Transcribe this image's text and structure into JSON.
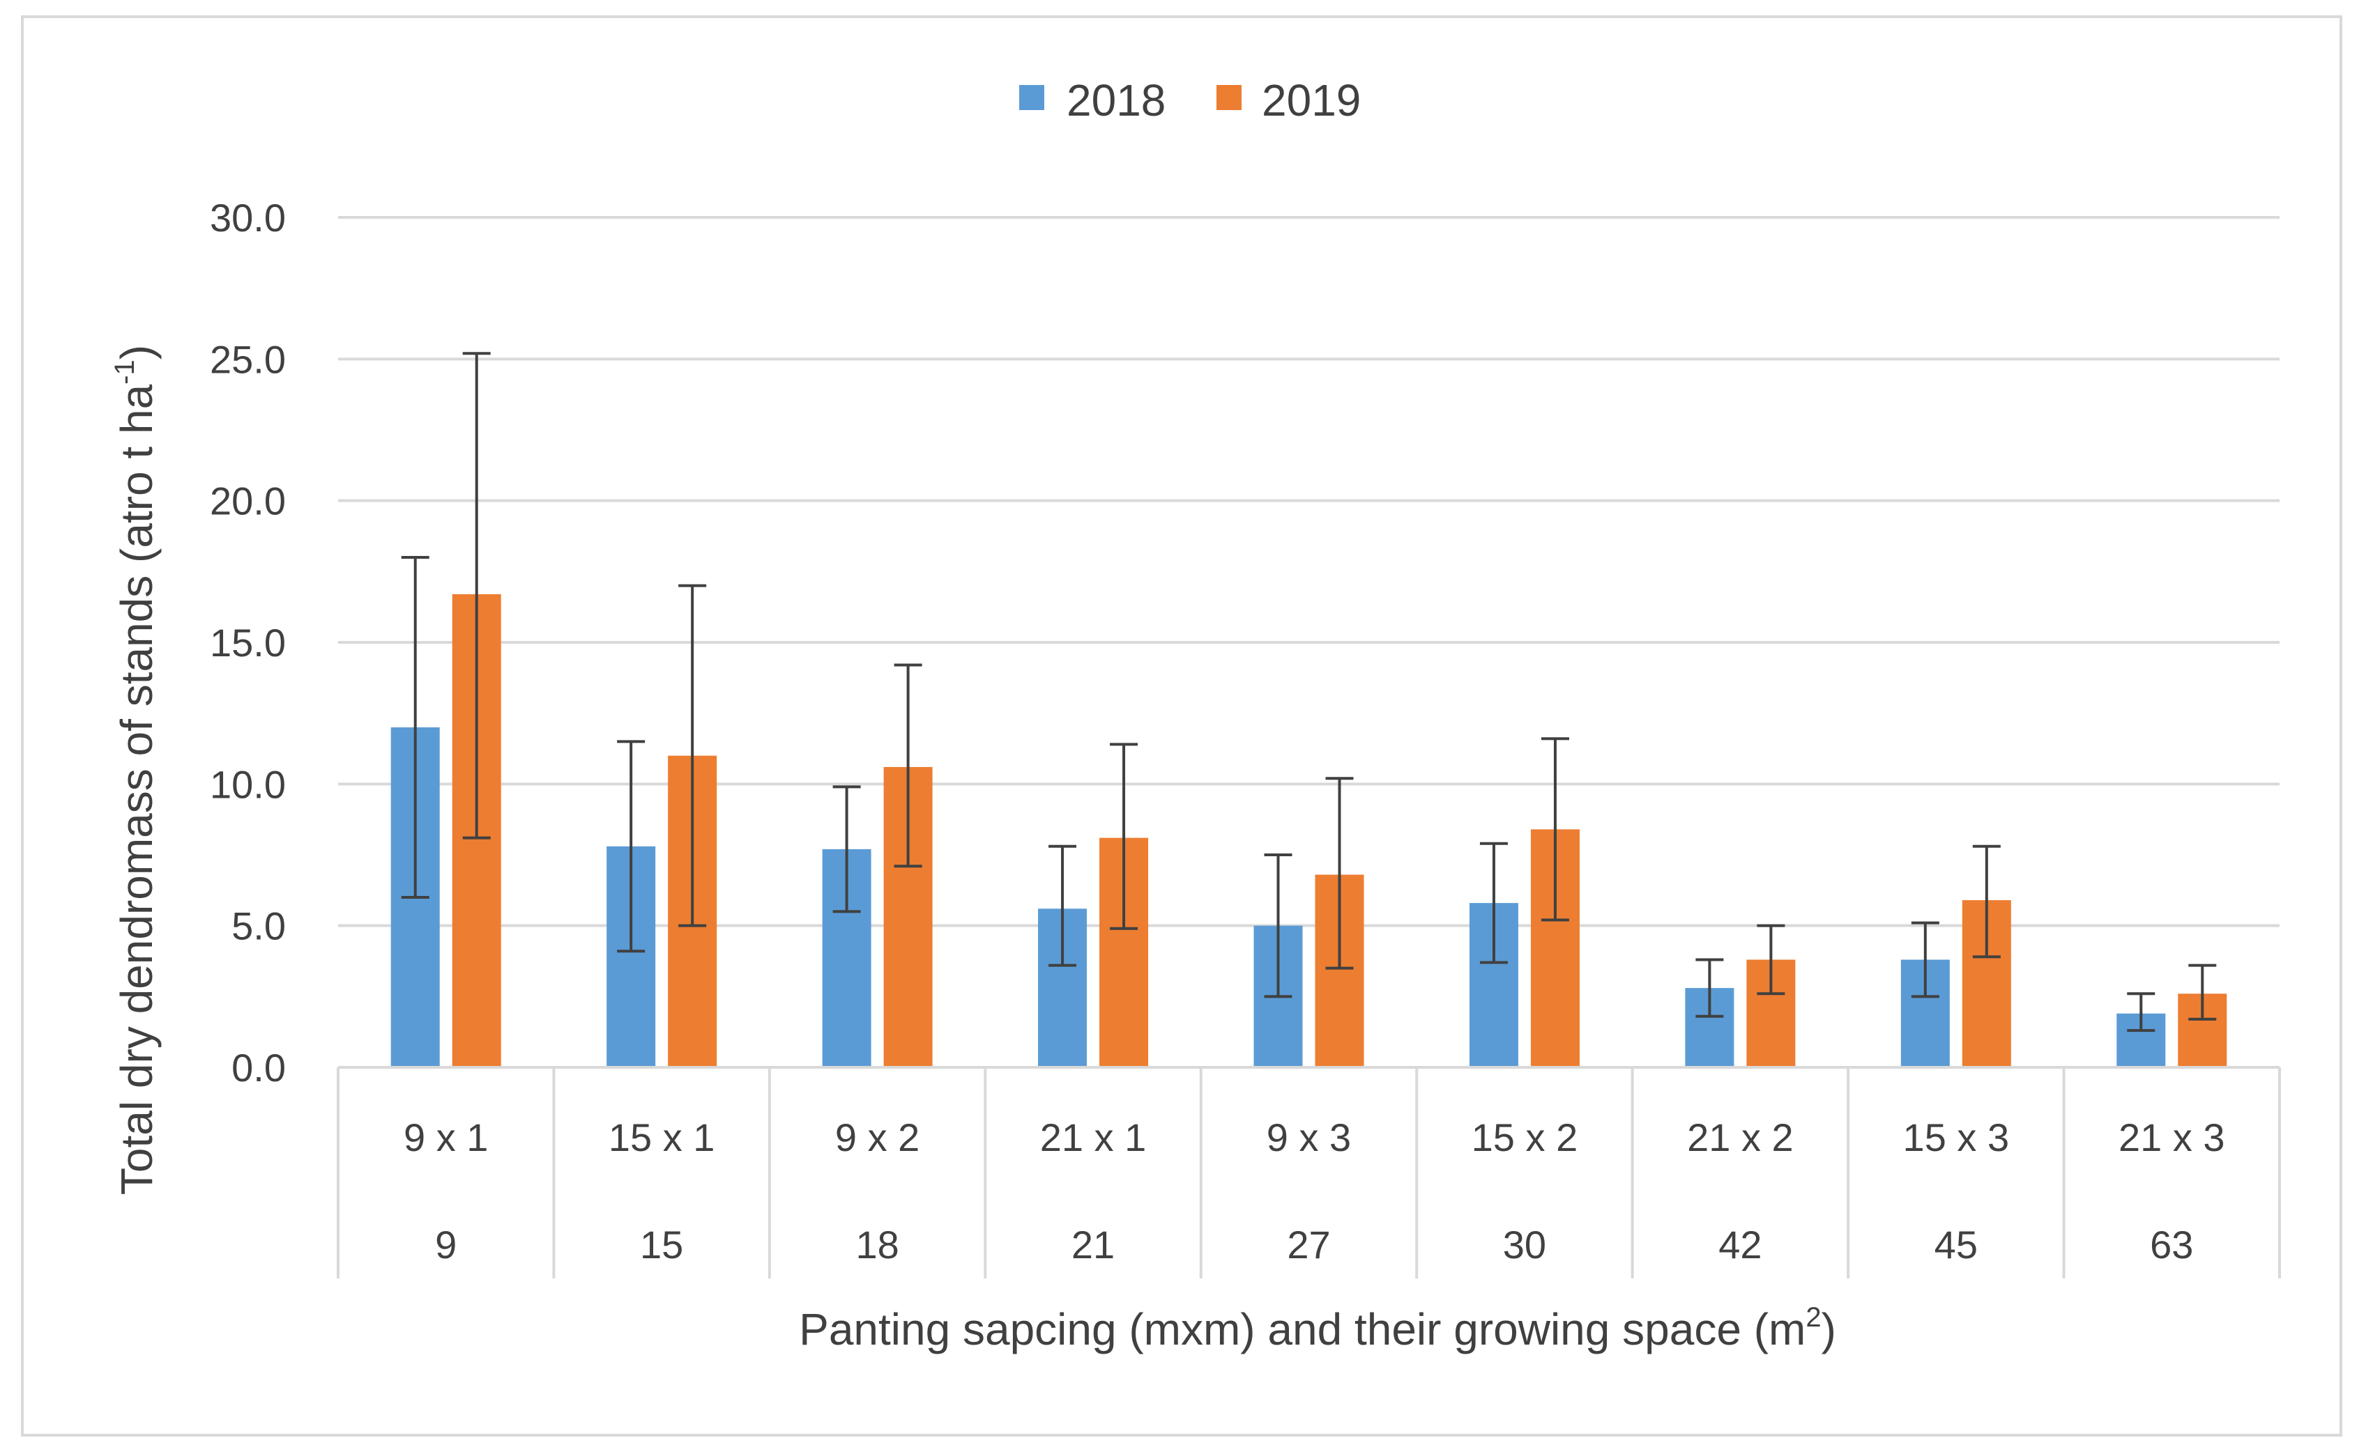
{
  "chart_data": {
    "type": "bar",
    "title": "",
    "categories": [
      "9 x 1",
      "15 x 1",
      "9 x 2",
      "21 x 1",
      "9 x 3",
      "15 x 2",
      "21 x 2",
      "15 x 3",
      "21 x 3"
    ],
    "categories_secondary": [
      "9",
      "15",
      "18",
      "21",
      "27",
      "30",
      "42",
      "45",
      "63"
    ],
    "series": [
      {
        "name": "2018",
        "color": "#5b9bd5",
        "values": [
          12.0,
          7.8,
          7.7,
          5.6,
          5.0,
          5.8,
          2.8,
          3.8,
          1.9
        ],
        "error_low": [
          6.0,
          4.1,
          5.5,
          3.6,
          2.5,
          3.7,
          1.8,
          2.5,
          1.3
        ],
        "error_high": [
          18.0,
          11.5,
          9.9,
          7.8,
          7.5,
          7.9,
          3.8,
          5.1,
          2.6
        ]
      },
      {
        "name": "2019",
        "color": "#ed7d31",
        "values": [
          16.7,
          11.0,
          10.6,
          8.1,
          6.8,
          8.4,
          3.8,
          5.9,
          2.6
        ],
        "error_low": [
          8.1,
          5.0,
          7.1,
          4.9,
          3.5,
          5.2,
          2.6,
          3.9,
          1.7
        ],
        "error_high": [
          25.2,
          17.0,
          14.2,
          11.4,
          10.2,
          11.6,
          5.0,
          7.8,
          3.6
        ]
      }
    ],
    "ylim": [
      0,
      30
    ],
    "yticks": [
      "0.0",
      "5.0",
      "10.0",
      "15.0",
      "20.0",
      "25.0",
      "30.0"
    ],
    "ylabel": "Total dry dendromass of stands (atro t ha",
    "ylabel_sup": "-1",
    "ylabel_end": ")",
    "xlabel": "Panting sapcing (mxm) and their growing space (m",
    "xlabel_sup": "2",
    "xlabel_end": ")",
    "grid": true,
    "legend_position": "top-center",
    "gridline_color": "#d9d9d9",
    "errorbar_color": "#404040"
  }
}
